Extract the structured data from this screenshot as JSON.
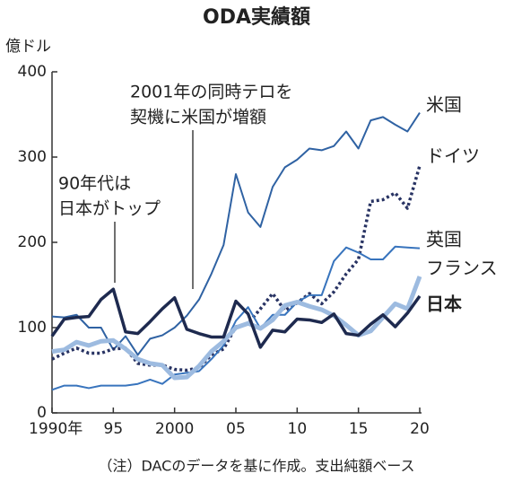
{
  "chart_data": {
    "type": "line",
    "title": "ODA実績額",
    "y_label": "億ドル",
    "note": "（注）DACのデータを基に作成。支出純額ベース",
    "annotations": [
      [
        "2001年の同時テロを",
        "契機に米国が増額"
      ],
      [
        "90年代は",
        "日本がトップ"
      ]
    ],
    "x": [
      1990,
      1991,
      1992,
      1993,
      1994,
      1995,
      1996,
      1997,
      1998,
      1999,
      2000,
      2001,
      2002,
      2003,
      2004,
      2005,
      2006,
      2007,
      2008,
      2009,
      2010,
      2011,
      2012,
      2013,
      2014,
      2015,
      2016,
      2017,
      2018,
      2019,
      2020
    ],
    "xlim": [
      1990,
      2020
    ],
    "xticks": [
      {
        "value": 1990,
        "label": "1990年"
      },
      {
        "value": 1995,
        "label": "95"
      },
      2000,
      {
        "value": 2005,
        "label": "05"
      },
      {
        "value": 2010,
        "label": "10"
      },
      {
        "value": 2015,
        "label": "15"
      },
      {
        "value": 2020,
        "label": "20"
      }
    ],
    "ylim": [
      0,
      400
    ],
    "yticks": [
      0,
      100,
      200,
      300,
      400
    ],
    "series": [
      {
        "name": "米国",
        "color": "#2f62a3",
        "values": [
          113,
          112,
          115,
          100,
          100,
          74,
          90,
          68,
          87,
          91,
          100,
          114,
          133,
          163,
          197,
          280,
          235,
          218,
          265,
          288,
          297,
          310,
          308,
          313,
          330,
          310,
          343,
          347,
          338,
          330,
          352
        ]
      },
      {
        "name": "ドイツ",
        "color": "#283363",
        "dash": "dotted",
        "values": [
          63,
          70,
          76,
          70,
          70,
          75,
          76,
          58,
          56,
          56,
          51,
          50,
          53,
          68,
          75,
          101,
          105,
          122,
          140,
          120,
          129,
          140,
          128,
          142,
          163,
          180,
          248,
          250,
          258,
          240,
          290
        ]
      },
      {
        "name": "英国",
        "color": "#3874bd",
        "values": [
          27,
          32,
          32,
          29,
          32,
          32,
          32,
          34,
          39,
          34,
          45,
          47,
          49,
          63,
          79,
          108,
          124,
          99,
          115,
          115,
          130,
          138,
          138,
          178,
          194,
          188,
          180,
          180,
          195,
          194,
          193
        ]
      },
      {
        "name": "フランス",
        "color": "#9dbbe0",
        "values": [
          72,
          74,
          83,
          79,
          84,
          85,
          75,
          63,
          58,
          56,
          41,
          42,
          55,
          72,
          84,
          100,
          105,
          99,
          109,
          126,
          130,
          125,
          121,
          114,
          103,
          91,
          96,
          112,
          128,
          122,
          160
        ]
      },
      {
        "name": "日本",
        "color": "#1e2a4f",
        "values": [
          90,
          110,
          112,
          113,
          133,
          145,
          95,
          93,
          107,
          122,
          135,
          98,
          93,
          89,
          89,
          131,
          116,
          77,
          97,
          95,
          110,
          109,
          106,
          116,
          93,
          91,
          104,
          115,
          101,
          117,
          137
        ]
      }
    ]
  }
}
